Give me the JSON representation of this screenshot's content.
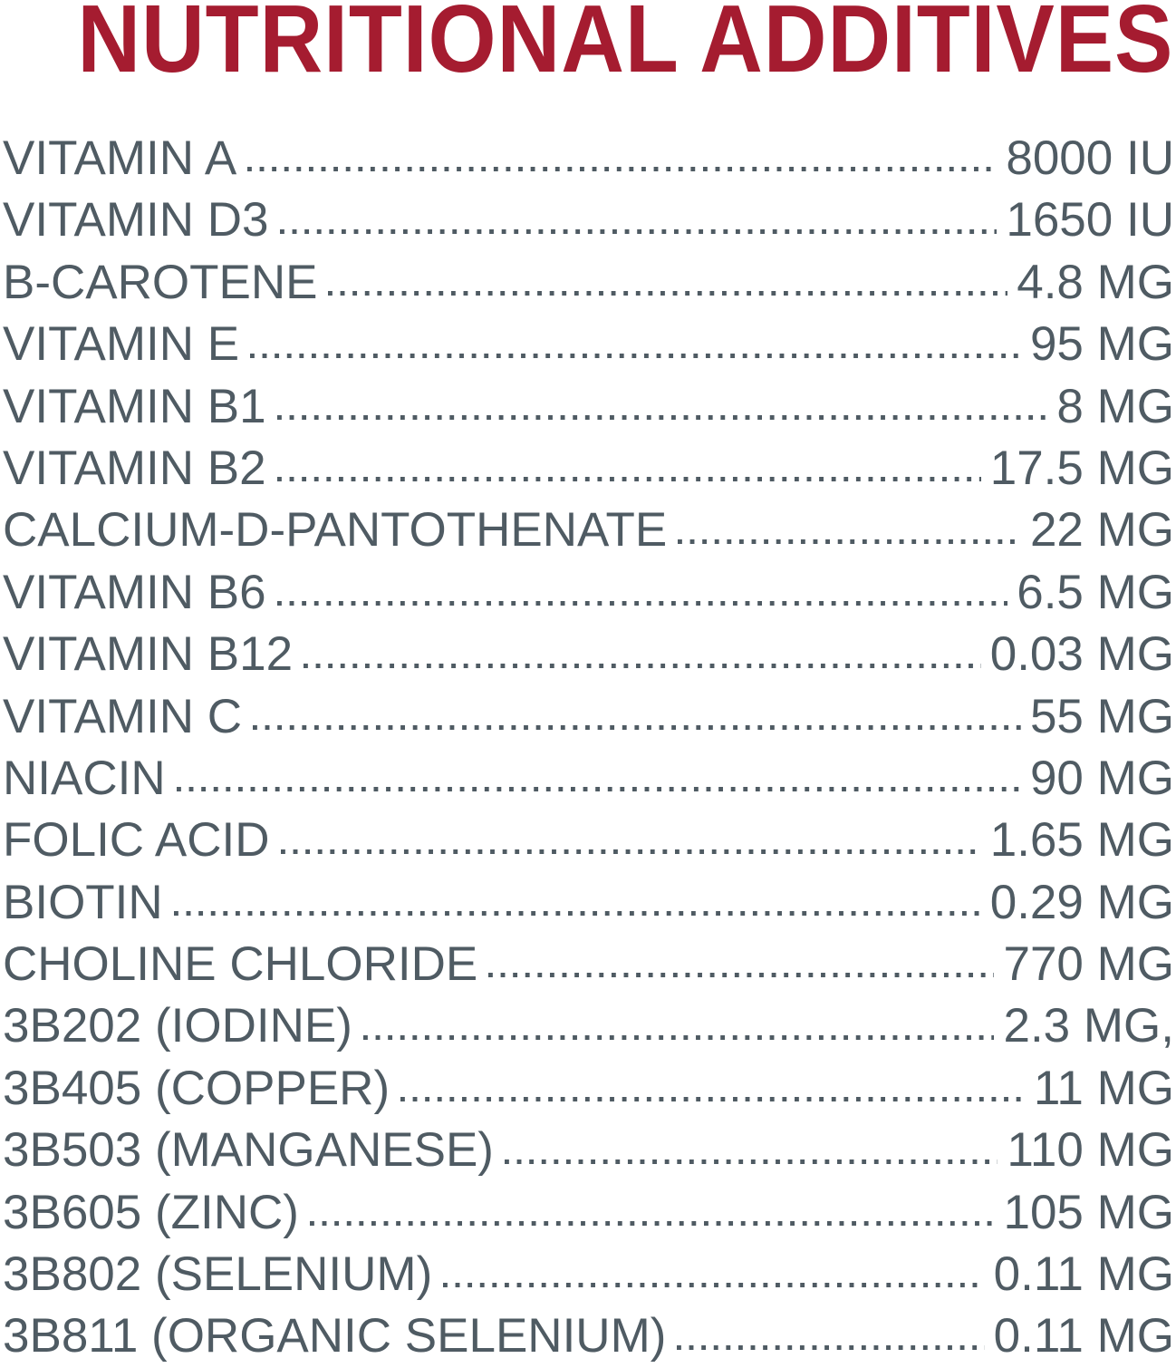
{
  "title": "NUTRITIONAL ADDITIVES",
  "colors": {
    "title": "#a51c30",
    "text": "#4f5b63"
  },
  "items": [
    {
      "label": "VITAMIN A",
      "value": "8000 IU"
    },
    {
      "label": "VITAMIN D3",
      "value": "1650 IU"
    },
    {
      "label": "B-CAROTENE",
      "value": "4.8 MG"
    },
    {
      "label": "VITAMIN E",
      "value": "95 MG"
    },
    {
      "label": "VITAMIN B1",
      "value": "8 MG"
    },
    {
      "label": "VITAMIN B2",
      "value": "17.5 MG"
    },
    {
      "label": "CALCIUM-D-PANTOTHENATE",
      "value": "22 MG"
    },
    {
      "label": "VITAMIN B6",
      "value": "6.5 MG"
    },
    {
      "label": "VITAMIN B12",
      "value": "0.03 MG"
    },
    {
      "label": "VITAMIN C",
      "value": "55 MG"
    },
    {
      "label": "NIACIN",
      "value": "90 MG"
    },
    {
      "label": "FOLIC ACID",
      "value": "1.65 MG"
    },
    {
      "label": "BIOTIN",
      "value": "0.29 MG"
    },
    {
      "label": "CHOLINE CHLORIDE",
      "value": "770 MG"
    },
    {
      "label": "3B202 (IODINE)",
      "value": "2.3 MG,"
    },
    {
      "label": "3B405 (COPPER)",
      "value": "11 MG"
    },
    {
      "label": "3B503 (MANGANESE)",
      "value": "110 MG"
    },
    {
      "label": "3B605 (ZINC)",
      "value": "105 MG"
    },
    {
      "label": "3B802 (SELENIUM)",
      "value": "0.11 MG"
    },
    {
      "label": "3B811 (ORGANIC SELENIUM)",
      "value": "0.11 MG"
    }
  ]
}
